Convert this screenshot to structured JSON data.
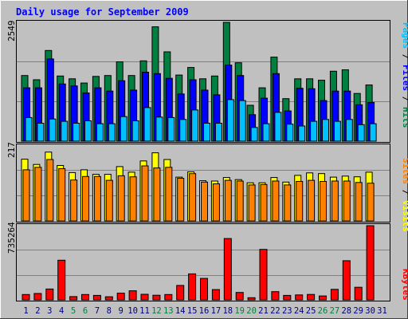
{
  "title": "Daily usage for September 2009",
  "chart_data": [
    {
      "type": "bar",
      "panel": "hits-files-pages",
      "categories": [
        "1",
        "2",
        "3",
        "4",
        "5",
        "6",
        "7",
        "8",
        "9",
        "10",
        "11",
        "12",
        "13",
        "14",
        "15",
        "16",
        "17",
        "18",
        "19",
        "20",
        "21",
        "22",
        "23",
        "24",
        "25",
        "26",
        "27",
        "28",
        "29",
        "30",
        "31"
      ],
      "ymax_label": "2549",
      "ylim": [
        0,
        2549
      ],
      "series": [
        {
          "name": "Hits",
          "color": "#008040",
          "values": [
            1390,
            1300,
            1920,
            1380,
            1320,
            1230,
            1370,
            1390,
            1680,
            1390,
            1700,
            2420,
            1890,
            1400,
            1560,
            1320,
            1380,
            2560,
            1660,
            760,
            1130,
            1780,
            900,
            1320,
            1320,
            1290,
            1480,
            1510,
            1010,
            1190,
            0
          ]
        },
        {
          "name": "Files",
          "color": "#0000ff",
          "values": [
            1130,
            1130,
            1740,
            1210,
            1170,
            1020,
            1130,
            1060,
            1280,
            1080,
            1460,
            1430,
            1330,
            1000,
            1300,
            1080,
            980,
            1610,
            1390,
            560,
            910,
            1430,
            640,
            1120,
            1110,
            860,
            1060,
            1060,
            770,
            820,
            0
          ]
        },
        {
          "name": "Pages",
          "color": "#00c0ff",
          "values": [
            500,
            380,
            470,
            420,
            380,
            430,
            370,
            370,
            520,
            430,
            710,
            510,
            500,
            460,
            660,
            380,
            380,
            880,
            860,
            290,
            370,
            610,
            360,
            320,
            420,
            460,
            420,
            460,
            350,
            370,
            0
          ]
        }
      ]
    },
    {
      "type": "bar",
      "panel": "visits-sites",
      "categories": [
        "1",
        "2",
        "3",
        "4",
        "5",
        "6",
        "7",
        "8",
        "9",
        "10",
        "11",
        "12",
        "13",
        "14",
        "15",
        "16",
        "17",
        "18",
        "19",
        "20",
        "21",
        "22",
        "23",
        "24",
        "25",
        "26",
        "27",
        "28",
        "29",
        "30",
        "31"
      ],
      "ymax_label": "217",
      "ylim": [
        0,
        217
      ],
      "series": [
        {
          "name": "Visits",
          "color": "#ffff00",
          "values": [
            175,
            160,
            195,
            157,
            137,
            145,
            132,
            132,
            154,
            138,
            170,
            193,
            174,
            124,
            139,
            114,
            113,
            123,
            117,
            108,
            108,
            123,
            110,
            129,
            136,
            134,
            124,
            127,
            125,
            138,
            0
          ]
        },
        {
          "name": "Sites",
          "color": "#ff8000",
          "values": [
            145,
            152,
            174,
            148,
            116,
            126,
            126,
            115,
            128,
            125,
            156,
            150,
            152,
            121,
            134,
            110,
            105,
            115,
            113,
            102,
            103,
            113,
            102,
            112,
            115,
            112,
            113,
            113,
            109,
            107,
            0
          ]
        }
      ]
    },
    {
      "type": "bar",
      "panel": "kbytes",
      "categories": [
        "1",
        "2",
        "3",
        "4",
        "5",
        "6",
        "7",
        "8",
        "9",
        "10",
        "11",
        "12",
        "13",
        "14",
        "15",
        "16",
        "17",
        "18",
        "19",
        "20",
        "21",
        "22",
        "23",
        "24",
        "25",
        "26",
        "27",
        "28",
        "29",
        "30",
        "31"
      ],
      "ymax_label": "735264",
      "ylim": [
        0,
        735264
      ],
      "series": [
        {
          "name": "KBytes",
          "color": "#ff0000",
          "values": [
            52000,
            62000,
            105000,
            385000,
            32000,
            52000,
            43000,
            30000,
            65000,
            88000,
            54000,
            45000,
            52000,
            140000,
            252000,
            208000,
            100000,
            595000,
            72000,
            21000,
            490000,
            80000,
            43000,
            48000,
            53000,
            38000,
            102000,
            380000,
            122000,
            745000,
            0
          ]
        }
      ]
    }
  ],
  "legend": {
    "panel1": [
      {
        "text": "Pages",
        "color": "#00c0ff"
      },
      {
        "text": " / ",
        "color": "#000000"
      },
      {
        "text": "Files",
        "color": "#0000ff"
      },
      {
        "text": " / ",
        "color": "#000000"
      },
      {
        "text": "Hits",
        "color": "#008040"
      }
    ],
    "panel2": [
      {
        "text": "Sites",
        "color": "#ff8000"
      },
      {
        "text": " / ",
        "color": "#000000"
      },
      {
        "text": "Visits",
        "color": "#ffff00"
      }
    ],
    "panel3": [
      {
        "text": "KBytes",
        "color": "#ff0000"
      }
    ]
  },
  "weekend_days": [
    5,
    6,
    12,
    13,
    19,
    20,
    26,
    27
  ],
  "colors": {
    "background": "#c0c0c0",
    "title": "#0000ff",
    "weekday_label": "#000080",
    "weekend_label": "#008040",
    "gridline": "#808080"
  }
}
